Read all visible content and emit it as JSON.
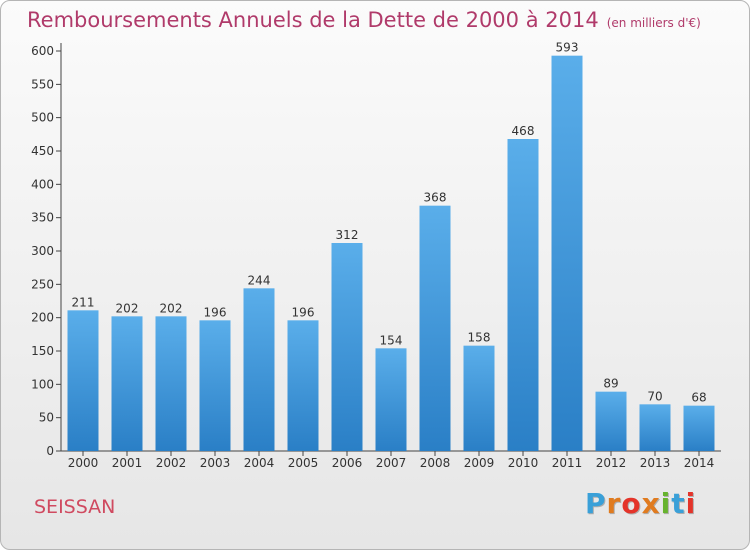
{
  "title": "Remboursements Annuels de la Dette de 2000 à 2014",
  "subtitle": "(en milliers d'€)",
  "town": "SEISSAN",
  "logo": {
    "text": "Proxiti",
    "colors": [
      "#3aa0d8",
      "#e07b1f",
      "#e4342a",
      "#e07b1f",
      "#67b32e",
      "#3aa0d8",
      "#e4342a"
    ]
  },
  "colors": {
    "bar_top": "#5aaeea",
    "bar_bottom": "#2a7fc6",
    "title": "#b03a6a"
  },
  "chart_data": {
    "type": "bar",
    "title": "Remboursements Annuels de la Dette de 2000 à 2014",
    "subtitle": "(en milliers d'€)",
    "categories": [
      "2000",
      "2001",
      "2002",
      "2003",
      "2004",
      "2005",
      "2006",
      "2007",
      "2008",
      "2009",
      "2010",
      "2011",
      "2012",
      "2013",
      "2014"
    ],
    "values": [
      211,
      202,
      202,
      196,
      244,
      196,
      312,
      154,
      368,
      158,
      468,
      593,
      89,
      70,
      68
    ],
    "ylim": [
      0,
      600
    ],
    "yticks": [
      0,
      50,
      100,
      150,
      200,
      250,
      300,
      350,
      400,
      450,
      500,
      550,
      600
    ],
    "grid": false,
    "data_labels": true
  }
}
